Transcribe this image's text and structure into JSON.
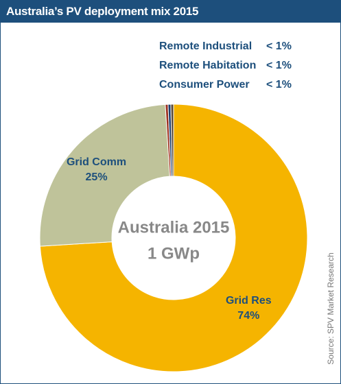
{
  "chart_data": {
    "type": "pie",
    "donut": true,
    "title": "Australia’s PV deployment mix 2015",
    "center_label": [
      "Australia 2015",
      "1 GWp"
    ],
    "source": "Source: SPV Market Research",
    "categories": [
      "Grid Res",
      "Grid Comm",
      "Remote Industrial",
      "Remote Habitation",
      "Consumer Power"
    ],
    "values": [
      74,
      25,
      0.33,
      0.33,
      0.33
    ],
    "value_labels": [
      "74%",
      "25%",
      "< 1%",
      "< 1%",
      "< 1%"
    ],
    "colors": [
      "#f5b400",
      "#bfc39a",
      "#9c2f1e",
      "#1d3f6e",
      "#5a4a38"
    ]
  }
}
